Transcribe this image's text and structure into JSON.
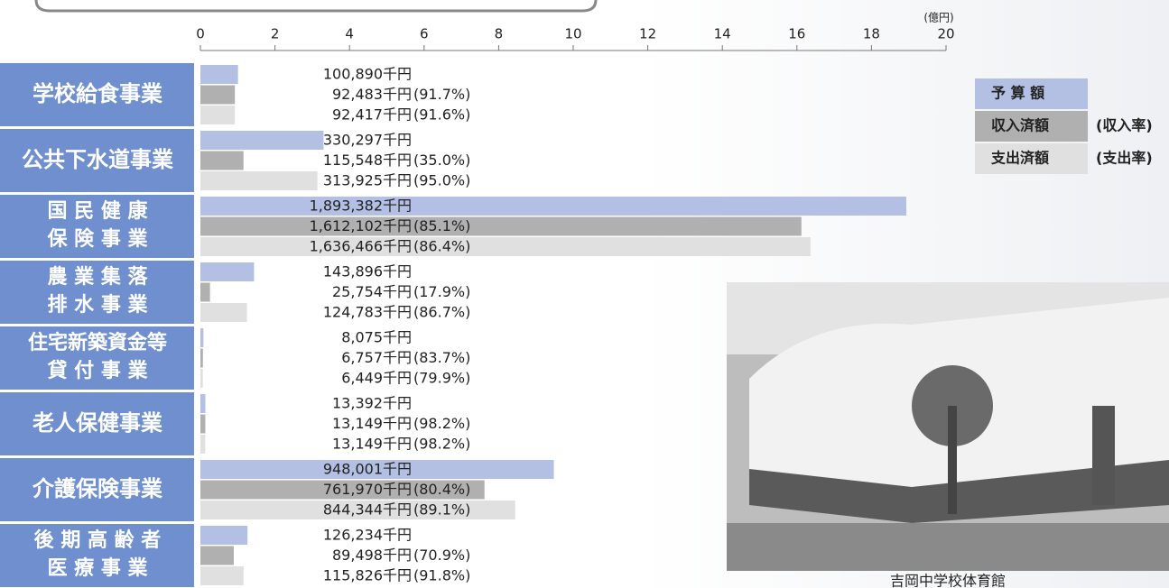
{
  "chart_data": {
    "type": "grouped-hbar",
    "x_unit_label": "(億円)",
    "xlim": [
      0,
      20
    ],
    "xticks": [
      0,
      2,
      4,
      6,
      8,
      10,
      12,
      14,
      16,
      18,
      20
    ],
    "categories": [
      "学校給食事業",
      "公共下水道事業",
      "国 民 健 康\n保 険 事 業",
      "農 業 集 落\n排 水 事 業",
      "住宅新築資金等\n貸 付 事 業",
      "老人保健事業",
      "介護保険事業",
      "後 期 高 齢 者\n医 療 事 業"
    ],
    "series": [
      {
        "name": "予 算 額",
        "color": "#b3c0e4",
        "values": [
          1.0089,
          3.30297,
          18.93382,
          1.43896,
          0.08075,
          0.13392,
          9.48001,
          1.26234
        ],
        "value_labels": [
          "100,890千円",
          "330,297千円",
          "1,893,382千円",
          "143,896千円",
          "8,075千円",
          "13,392千円",
          "948,001千円",
          "126,234千円"
        ]
      },
      {
        "name": "収入済額",
        "rate_name": "(収入率)",
        "color": "#b0b0b0",
        "values": [
          0.92483,
          1.15548,
          16.12102,
          0.25754,
          0.06757,
          0.13149,
          7.6197,
          0.89498
        ],
        "value_labels": [
          "92,483千円",
          "115,548千円",
          "1,612,102千円",
          "25,754千円",
          "6,757千円",
          "13,149千円",
          "761,970千円",
          "89,498千円"
        ],
        "rate_labels": [
          "(91.7%)",
          "(35.0%)",
          "(85.1%)",
          "(17.9%)",
          "(83.7%)",
          "(98.2%)",
          "(80.4%)",
          "(70.9%)"
        ]
      },
      {
        "name": "支出済額",
        "rate_name": "(支出率)",
        "color": "#e0e0e0",
        "values": [
          0.92417,
          3.13925,
          16.36466,
          1.24783,
          0.06449,
          0.13149,
          8.44344,
          1.15826
        ],
        "value_labels": [
          "92,417千円",
          "313,925千円",
          "1,636,466千円",
          "124,783千円",
          "6,449千円",
          "13,149千円",
          "844,344千円",
          "115,826千円"
        ],
        "rate_labels": [
          "(91.6%)",
          "(95.0%)",
          "(86.4%)",
          "(86.7%)",
          "(79.9%)",
          "(98.2%)",
          "(89.1%)",
          "(91.8%)"
        ]
      }
    ],
    "category_color": "#6f8fce",
    "photo_caption": "吉岡中学校体育館"
  }
}
